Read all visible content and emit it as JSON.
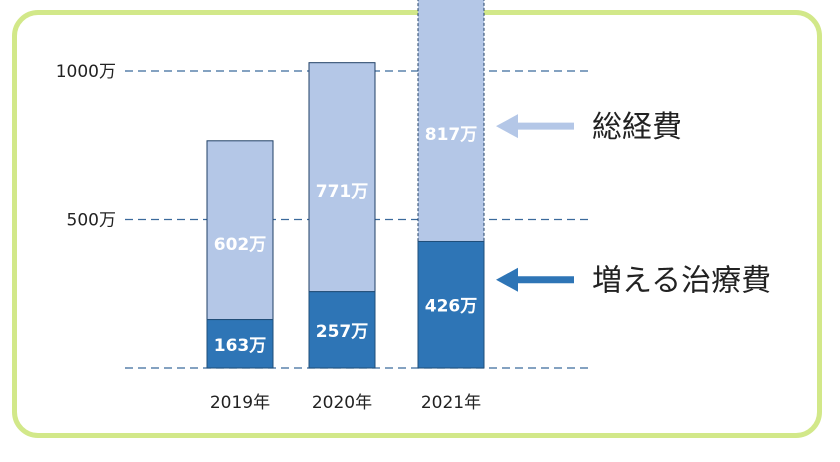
{
  "chart_data": {
    "type": "bar",
    "stacked": true,
    "categories": [
      "2019年",
      "2020年",
      "2021年"
    ],
    "series": [
      {
        "key": "treatment",
        "values": [
          163,
          257,
          426
        ],
        "labels": [
          "163万",
          "257万",
          "426万"
        ],
        "color": "#2e75b6"
      },
      {
        "key": "total",
        "values": [
          602,
          771,
          817
        ],
        "labels": [
          "602万",
          "771万",
          "817万"
        ],
        "color": "#b4c7e7"
      }
    ],
    "ylim": [
      0,
      1000
    ],
    "yticks": [
      {
        "value": 1000,
        "label": "1000万"
      },
      {
        "value": 500,
        "label": "500万"
      },
      {
        "value": 0,
        "label": ""
      }
    ],
    "grid": "dashed",
    "annotations": [
      {
        "text": "総経費",
        "target_series": "total",
        "arrow_color": "#b4c7e7"
      },
      {
        "text": "増える治療費",
        "target_series": "treatment",
        "arrow_color": "#2e75b6"
      }
    ],
    "dashed_outline_category": "2021年"
  },
  "colors": {
    "frame": "#d2e889",
    "grid": "#3b6a9c"
  }
}
